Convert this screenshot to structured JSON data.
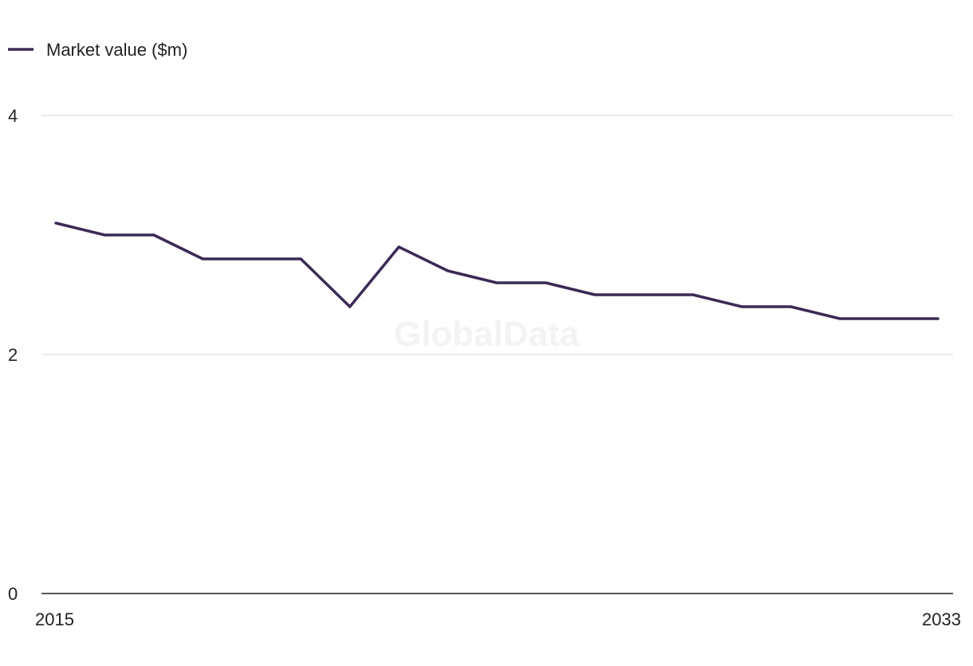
{
  "watermark": "GlobalData",
  "chart_data": {
    "type": "line",
    "title": "",
    "xlabel": "",
    "ylabel": "",
    "x": [
      2015,
      2016,
      2017,
      2018,
      2019,
      2020,
      2021,
      2022,
      2023,
      2024,
      2025,
      2026,
      2027,
      2028,
      2029,
      2030,
      2031,
      2032,
      2033
    ],
    "x_tick_labels": [
      "2015",
      "2033"
    ],
    "y_ticks": [
      0,
      2,
      4
    ],
    "y_tick_labels": [
      "0",
      "2",
      "4"
    ],
    "ylim": [
      0,
      4
    ],
    "grid": true,
    "legend_position": "top-left",
    "series": [
      {
        "name": "Market value ($m)",
        "color": "#3b2a55",
        "values": [
          3.1,
          3.0,
          3.0,
          2.8,
          2.8,
          2.8,
          2.4,
          2.9,
          2.7,
          2.6,
          2.6,
          2.5,
          2.5,
          2.5,
          2.4,
          2.4,
          2.3,
          2.3,
          2.3
        ]
      }
    ]
  }
}
